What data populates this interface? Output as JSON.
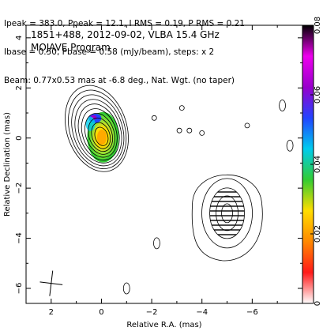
{
  "header": {
    "line1": "Ipeak = 383.0, Ppeak = 12.1, I RMS = 0.19, P RMS = 0.21",
    "line2": "Ibase = 0.50, Pbase = 0.58 (mJy/beam), steps: x 2",
    "line3": "Beam: 0.77x0.53 mas at -6.8 deg., Nat. Wgt. (no taper)"
  },
  "chart_data": {
    "type": "contour",
    "title": "1851+488, 2012-09-02, VLBA 15.4 GHz",
    "subtitle": "MOJAVE Program",
    "xlabel": "Relative R.A. (mas)",
    "ylabel": "Relative Declination (mas)",
    "xlim": [
      3,
      -8
    ],
    "ylim": [
      -6.6,
      4.5
    ],
    "x_ticks": [
      2,
      0,
      -2,
      -4,
      -6
    ],
    "y_ticks": [
      4,
      2,
      0,
      -2,
      -4,
      -6
    ],
    "tick_labels_x": [
      "2",
      "0",
      "−2",
      "−4",
      "−6"
    ],
    "tick_labels_y": [
      "4",
      "2",
      "0",
      "−2",
      "−4",
      "−6"
    ],
    "colorbar": {
      "min": 0,
      "max": 0.08,
      "ticks": [
        0,
        0.02,
        0.04,
        0.06,
        0.08
      ],
      "tick_labels": [
        "0",
        "0.02",
        "0.04",
        "0.06",
        "0.08"
      ],
      "colors": [
        "#ffffff",
        "#ff1a1a",
        "#ff8800",
        "#ffdd00",
        "#33cc33",
        "#00ccee",
        "#2244ff",
        "#9900cc",
        "#ee00ee",
        "#000000"
      ]
    },
    "core_component": {
      "x": 0,
      "y": 0,
      "contour_levels": 10,
      "color_fill": true
    },
    "jet_component": {
      "x": -5,
      "y": -3,
      "contour_levels": 5,
      "hatched": true
    },
    "beam": {
      "x": 2,
      "y": -5.8,
      "major_mas": 0.77,
      "minor_mas": 0.53,
      "pa_deg": -6.8
    },
    "noise_contours": [
      {
        "x": -2.1,
        "y": 0.8
      },
      {
        "x": -3.1,
        "y": 0.3
      },
      {
        "x": -3.5,
        "y": 0.3
      },
      {
        "x": -4.0,
        "y": 0.2
      },
      {
        "x": -5.8,
        "y": 0.5
      },
      {
        "x": -7.5,
        "y": -0.3
      },
      {
        "x": -3.2,
        "y": 1.2
      },
      {
        "x": -7.2,
        "y": 1.3
      },
      {
        "x": -1.0,
        "y": -6.0
      },
      {
        "x": -2.2,
        "y": -4.2
      }
    ]
  }
}
